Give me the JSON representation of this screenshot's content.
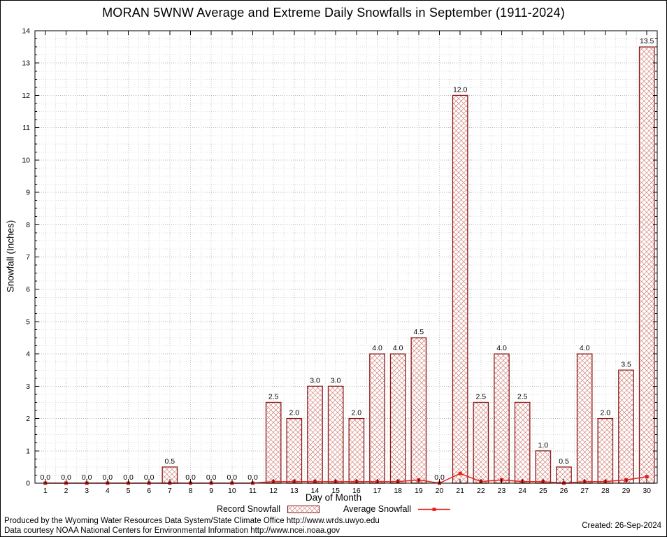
{
  "chart_data": {
    "type": "bar",
    "title": "MORAN 5WNW Average and Extreme Daily Snowfalls in September (1911-2024)",
    "xlabel": "Day of Month",
    "ylabel": "Snowfall (Inches)",
    "ylim": [
      0,
      14
    ],
    "grid": true,
    "legend_position": "bottom",
    "categories": [
      1,
      2,
      3,
      4,
      5,
      6,
      7,
      8,
      9,
      10,
      11,
      12,
      13,
      14,
      15,
      16,
      17,
      18,
      19,
      20,
      21,
      22,
      23,
      24,
      25,
      26,
      27,
      28,
      29,
      30
    ],
    "series": [
      {
        "name": "Record Snowfall",
        "type": "bar",
        "color": "#8b1a1a",
        "hatch_color": "#c4574b",
        "values": [
          0.0,
          0.0,
          0.0,
          0.0,
          0.0,
          0.0,
          0.5,
          0.0,
          0.0,
          0.0,
          0.0,
          2.5,
          2.0,
          3.0,
          3.0,
          2.0,
          4.0,
          4.0,
          4.5,
          0.0,
          12.0,
          2.5,
          4.0,
          2.5,
          1.0,
          0.5,
          4.0,
          2.0,
          3.5,
          13.5
        ]
      },
      {
        "name": "Average Snowfall",
        "type": "line",
        "color": "#e8231d",
        "values": [
          0.0,
          0.0,
          0.0,
          0.0,
          0.0,
          0.0,
          0.0,
          0.0,
          0.0,
          0.0,
          0.0,
          0.05,
          0.05,
          0.05,
          0.05,
          0.05,
          0.05,
          0.05,
          0.1,
          0.0,
          0.3,
          0.05,
          0.1,
          0.05,
          0.05,
          0.0,
          0.05,
          0.05,
          0.1,
          0.2
        ]
      }
    ]
  },
  "footer": {
    "line1": "Produced by the Wyoming Water Resources Data System/State Climate Office http://www.wrds.uwyo.edu",
    "line2": "Data courtesy NOAA National Centers for Environmental Information http://www.ncei.noaa.gov",
    "created": "Created: 26-Sep-2024"
  }
}
